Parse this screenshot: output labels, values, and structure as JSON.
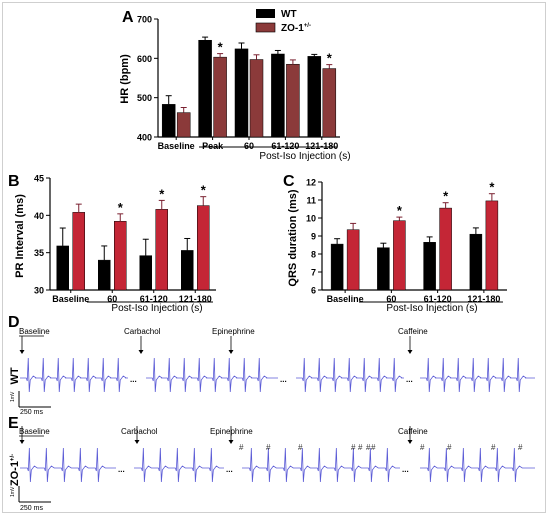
{
  "colors": {
    "wt": "#000000",
    "zo1": "#8b3a3a",
    "zo1_qrs": "#c0303a",
    "ecg": "#5b5bd6",
    "axis": "#000000"
  },
  "panels": {
    "A": "A",
    "B": "B",
    "C": "C",
    "D": "D",
    "E": "E"
  },
  "chart_data": [
    {
      "panel": "A",
      "type": "bar",
      "ylabel": "HR (bpm)",
      "xlabel": "Post-Iso Injection (s)",
      "ylim": [
        400,
        700
      ],
      "yticks": [
        "400",
        "500",
        "600",
        "700"
      ],
      "categories": [
        "Baseline",
        "Peak",
        "60",
        "61-120",
        "121-180"
      ],
      "series": [
        {
          "name": "WT",
          "values": [
            483,
            646,
            624,
            611,
            605
          ],
          "errors": [
            22,
            8,
            15,
            9,
            5
          ]
        },
        {
          "name": "ZO-1+/-",
          "values": [
            462,
            603,
            597,
            585,
            574
          ],
          "errors": [
            13,
            9,
            12,
            11,
            10
          ]
        }
      ],
      "significance": [
        "",
        "*",
        "",
        "",
        "*"
      ],
      "legend": {
        "placement": "top-right",
        "entries": [
          "WT",
          "ZO-1"
        ],
        "superscript": "+/-"
      },
      "grid": false
    },
    {
      "panel": "B",
      "type": "bar",
      "ylabel": "PR Interval (ms)",
      "xlabel": "Post-Iso Injection (s)",
      "ylim": [
        30,
        45
      ],
      "yticks": [
        "30",
        "35",
        "40",
        "45"
      ],
      "categories": [
        "Baseline",
        "60",
        "61-120",
        "121-180"
      ],
      "series": [
        {
          "name": "WT",
          "values": [
            35.9,
            34.0,
            34.6,
            35.3
          ],
          "errors": [
            2.4,
            1.9,
            2.2,
            1.6
          ]
        },
        {
          "name": "ZO-1+/-",
          "values": [
            40.4,
            39.2,
            40.8,
            41.3
          ],
          "errors": [
            1.1,
            1.0,
            1.2,
            1.2
          ]
        }
      ],
      "significance": [
        "",
        "*",
        "*",
        "*"
      ],
      "grid": false
    },
    {
      "panel": "C",
      "type": "bar",
      "ylabel": "QRS duration  (ms)",
      "xlabel": "Post-Iso Injection (s)",
      "ylim": [
        6,
        12
      ],
      "yticks": [
        "6",
        "7",
        "8",
        "9",
        "10",
        "11",
        "12"
      ],
      "categories": [
        "Baseline",
        "60",
        "61-120",
        "121-180"
      ],
      "series": [
        {
          "name": "WT",
          "values": [
            8.55,
            8.35,
            8.65,
            9.1
          ],
          "errors": [
            0.3,
            0.25,
            0.3,
            0.35
          ]
        },
        {
          "name": "ZO-1+/-",
          "values": [
            9.35,
            9.85,
            10.55,
            10.95
          ],
          "errors": [
            0.35,
            0.2,
            0.3,
            0.4
          ]
        }
      ],
      "significance": [
        "",
        "*",
        "*",
        "*"
      ],
      "grid": false
    }
  ],
  "traces": {
    "D": {
      "row_label": "WT",
      "events": [
        "Baseline",
        "Carbachol",
        "Epinephrine",
        "Caffeine"
      ],
      "scale_time": "250 ms",
      "scale_volt": "1mV"
    },
    "E": {
      "row_label": "ZO-1",
      "row_label_sup": "+/-",
      "events": [
        "Baseline",
        "Carbachol",
        "Epinephrine",
        "Caffeine"
      ],
      "marker": "#",
      "scale_time": "250 ms",
      "scale_volt": "1mV"
    }
  }
}
